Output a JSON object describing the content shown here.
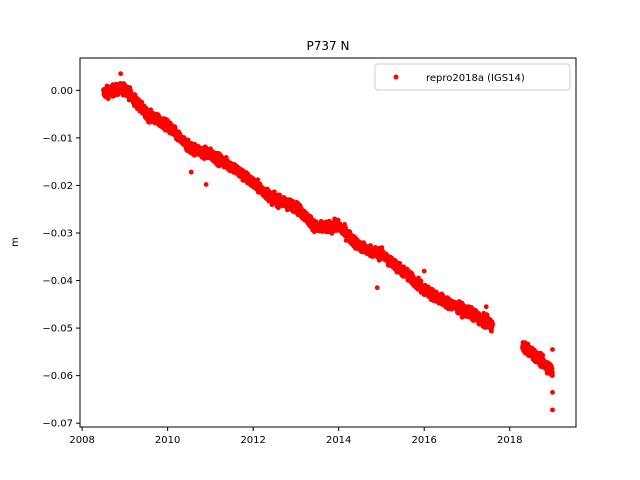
{
  "chart_data": {
    "type": "scatter",
    "title": "P737 N",
    "xlabel": "",
    "ylabel": "m",
    "xlim": [
      2007.95,
      2019.55
    ],
    "ylim": [
      -0.0708,
      0.0068
    ],
    "x_ticks": [
      2008,
      2010,
      2012,
      2014,
      2016,
      2018
    ],
    "x_tick_labels": [
      "2008",
      "2010",
      "2012",
      "2014",
      "2016",
      "2018"
    ],
    "y_ticks": [
      0.0,
      -0.01,
      -0.02,
      -0.03,
      -0.04,
      -0.05,
      -0.06,
      -0.07
    ],
    "y_tick_labels": [
      "0.00",
      "−0.01",
      "−0.02",
      "−0.03",
      "−0.04",
      "−0.05",
      "−0.06",
      "−0.07"
    ],
    "grid": false,
    "legend_position": "top-right",
    "colors": {
      "series": "#ff0000"
    },
    "series": [
      {
        "name": "repro2018a (IGS14)",
        "marker": "circle",
        "segments": [
          {
            "t_start": 2008.5,
            "t_end": 2017.6
          },
          {
            "t_start": 2018.3,
            "t_end": 2019.0
          }
        ],
        "trend_points": [
          {
            "x": 2008.5,
            "y": -0.0005
          },
          {
            "x": 2009.0,
            "y": 0.0005
          },
          {
            "x": 2009.5,
            "y": -0.005
          },
          {
            "x": 2010.0,
            "y": -0.0075
          },
          {
            "x": 2010.5,
            "y": -0.012
          },
          {
            "x": 2011.0,
            "y": -0.0135
          },
          {
            "x": 2011.5,
            "y": -0.016
          },
          {
            "x": 2012.0,
            "y": -0.0195
          },
          {
            "x": 2012.5,
            "y": -0.023
          },
          {
            "x": 2013.0,
            "y": -0.0245
          },
          {
            "x": 2013.5,
            "y": -0.029
          },
          {
            "x": 2014.0,
            "y": -0.0285
          },
          {
            "x": 2014.5,
            "y": -0.033
          },
          {
            "x": 2015.0,
            "y": -0.0345
          },
          {
            "x": 2015.5,
            "y": -0.038
          },
          {
            "x": 2016.0,
            "y": -0.042
          },
          {
            "x": 2016.5,
            "y": -0.0445
          },
          {
            "x": 2017.0,
            "y": -0.0465
          },
          {
            "x": 2017.5,
            "y": -0.049
          },
          {
            "x": 2018.5,
            "y": -0.055
          },
          {
            "x": 2019.0,
            "y": -0.059
          }
        ],
        "outliers": [
          {
            "x": 2010.9,
            "y": -0.0198
          },
          {
            "x": 2010.55,
            "y": -0.0172
          },
          {
            "x": 2014.9,
            "y": -0.0415
          },
          {
            "x": 2016.0,
            "y": -0.038
          },
          {
            "x": 2019.0,
            "y": -0.0672
          },
          {
            "x": 2019.0,
            "y": -0.0635
          },
          {
            "x": 2019.0,
            "y": -0.0545
          },
          {
            "x": 2008.9,
            "y": 0.0035
          },
          {
            "x": 2017.45,
            "y": -0.0455
          }
        ]
      }
    ]
  }
}
